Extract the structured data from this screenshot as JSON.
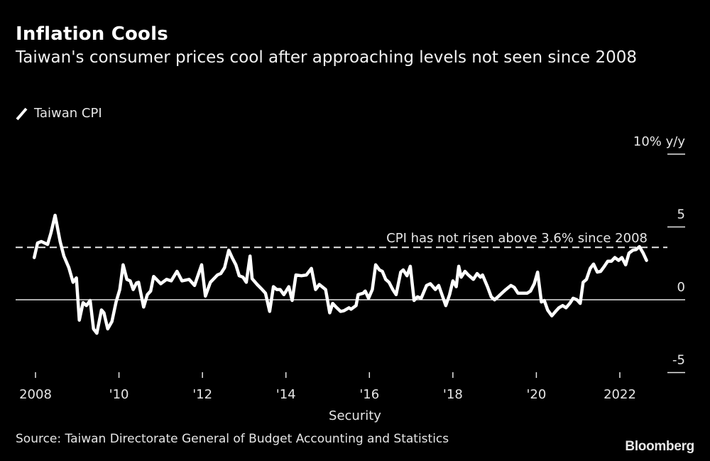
{
  "header": {
    "title": "Inflation Cools",
    "subtitle": "Taiwan's consumer prices cool after approaching levels not seen since 2008"
  },
  "legend": {
    "label": "Taiwan CPI"
  },
  "footer": {
    "source": "Source: Taiwan Directorate General of Budget Accounting and Statistics",
    "brand": "Bloomberg"
  },
  "chart_data": {
    "type": "line",
    "title": "Inflation Cools",
    "subtitle": "Taiwan's consumer prices cool after approaching levels not seen since 2008",
    "xlabel": "Security",
    "ylabel": "10% y/y",
    "ylim": [
      -5,
      10
    ],
    "xlim": [
      2008,
      2022.75
    ],
    "yticks": [
      {
        "value": 10,
        "label": "10% y/y"
      },
      {
        "value": 5,
        "label": "5"
      },
      {
        "value": 0,
        "label": "0"
      },
      {
        "value": -5,
        "label": "-5"
      }
    ],
    "xticks": [
      {
        "value": 2008,
        "label": "2008"
      },
      {
        "value": 2010,
        "label": "'10"
      },
      {
        "value": 2012,
        "label": "'12"
      },
      {
        "value": 2014,
        "label": "'14"
      },
      {
        "value": 2016,
        "label": "'16"
      },
      {
        "value": 2018,
        "label": "'18"
      },
      {
        "value": 2020,
        "label": "'20"
      },
      {
        "value": 2022,
        "label": "2022"
      }
    ],
    "legend_position": "top-left",
    "reference_line": {
      "value": 3.6,
      "label": "CPI has not risen above 3.6% since 2008",
      "style": "dashed"
    },
    "color": "#ffffff",
    "series": [
      {
        "name": "Taiwan CPI",
        "points": [
          [
            2007.97,
            2.9
          ],
          [
            2008.05,
            3.9
          ],
          [
            2008.14,
            4.0
          ],
          [
            2008.29,
            3.8
          ],
          [
            2008.37,
            4.6
          ],
          [
            2008.47,
            5.8
          ],
          [
            2008.59,
            4.0
          ],
          [
            2008.68,
            3.0
          ],
          [
            2008.8,
            2.2
          ],
          [
            2008.9,
            1.2
          ],
          [
            2008.98,
            1.5
          ],
          [
            2009.05,
            -1.4
          ],
          [
            2009.14,
            -0.2
          ],
          [
            2009.22,
            -0.4
          ],
          [
            2009.31,
            -0.05
          ],
          [
            2009.39,
            -2.0
          ],
          [
            2009.47,
            -2.3
          ],
          [
            2009.58,
            -0.7
          ],
          [
            2009.64,
            -0.9
          ],
          [
            2009.73,
            -2.0
          ],
          [
            2009.83,
            -1.5
          ],
          [
            2009.93,
            -0.15
          ],
          [
            2010.02,
            0.7
          ],
          [
            2010.1,
            2.4
          ],
          [
            2010.19,
            1.4
          ],
          [
            2010.27,
            1.3
          ],
          [
            2010.34,
            0.7
          ],
          [
            2010.42,
            1.15
          ],
          [
            2010.47,
            1.2
          ],
          [
            2010.59,
            -0.5
          ],
          [
            2010.68,
            0.35
          ],
          [
            2010.76,
            0.6
          ],
          [
            2010.83,
            1.6
          ],
          [
            2011.0,
            1.1
          ],
          [
            2011.14,
            1.4
          ],
          [
            2011.25,
            1.3
          ],
          [
            2011.39,
            1.95
          ],
          [
            2011.51,
            1.3
          ],
          [
            2011.68,
            1.4
          ],
          [
            2011.81,
            0.98
          ],
          [
            2011.98,
            2.4
          ],
          [
            2012.07,
            0.25
          ],
          [
            2012.19,
            1.2
          ],
          [
            2012.36,
            1.7
          ],
          [
            2012.44,
            1.8
          ],
          [
            2012.53,
            2.2
          ],
          [
            2012.63,
            3.4
          ],
          [
            2012.71,
            2.9
          ],
          [
            2012.8,
            2.4
          ],
          [
            2012.88,
            1.65
          ],
          [
            2012.97,
            1.55
          ],
          [
            2013.05,
            1.2
          ],
          [
            2013.14,
            3.0
          ],
          [
            2013.19,
            1.45
          ],
          [
            2013.31,
            1.05
          ],
          [
            2013.43,
            0.7
          ],
          [
            2013.51,
            0.45
          ],
          [
            2013.61,
            -0.8
          ],
          [
            2013.7,
            0.9
          ],
          [
            2013.78,
            0.7
          ],
          [
            2013.86,
            0.7
          ],
          [
            2013.95,
            0.35
          ],
          [
            2014.07,
            0.9
          ],
          [
            2014.15,
            -0.05
          ],
          [
            2014.24,
            1.7
          ],
          [
            2014.37,
            1.65
          ],
          [
            2014.49,
            1.7
          ],
          [
            2014.61,
            2.15
          ],
          [
            2014.71,
            0.7
          ],
          [
            2014.8,
            1.05
          ],
          [
            2014.95,
            0.7
          ],
          [
            2015.05,
            -0.9
          ],
          [
            2015.12,
            -0.25
          ],
          [
            2015.2,
            -0.5
          ],
          [
            2015.31,
            -0.8
          ],
          [
            2015.39,
            -0.75
          ],
          [
            2015.51,
            -0.55
          ],
          [
            2015.56,
            -0.65
          ],
          [
            2015.68,
            -0.4
          ],
          [
            2015.73,
            0.35
          ],
          [
            2015.85,
            0.45
          ],
          [
            2015.9,
            0.6
          ],
          [
            2015.98,
            0.1
          ],
          [
            2016.07,
            0.7
          ],
          [
            2016.15,
            2.4
          ],
          [
            2016.24,
            2.05
          ],
          [
            2016.31,
            1.95
          ],
          [
            2016.39,
            1.4
          ],
          [
            2016.47,
            1.2
          ],
          [
            2016.56,
            0.7
          ],
          [
            2016.64,
            0.35
          ],
          [
            2016.75,
            1.9
          ],
          [
            2016.81,
            2.05
          ],
          [
            2016.9,
            1.65
          ],
          [
            2016.98,
            2.3
          ],
          [
            2017.07,
            -0.05
          ],
          [
            2017.15,
            0.2
          ],
          [
            2017.24,
            0.1
          ],
          [
            2017.37,
            0.98
          ],
          [
            2017.46,
            1.1
          ],
          [
            2017.58,
            0.7
          ],
          [
            2017.66,
            0.98
          ],
          [
            2017.75,
            0.25
          ],
          [
            2017.83,
            -0.4
          ],
          [
            2017.92,
            0.35
          ],
          [
            2018.0,
            1.3
          ],
          [
            2018.08,
            0.9
          ],
          [
            2018.14,
            2.3
          ],
          [
            2018.2,
            1.55
          ],
          [
            2018.29,
            1.95
          ],
          [
            2018.37,
            1.7
          ],
          [
            2018.49,
            1.4
          ],
          [
            2018.58,
            1.8
          ],
          [
            2018.66,
            1.55
          ],
          [
            2018.71,
            1.7
          ],
          [
            2018.83,
            0.9
          ],
          [
            2018.92,
            0.2
          ],
          [
            2019.0,
            0.0
          ],
          [
            2019.08,
            0.2
          ],
          [
            2019.19,
            0.5
          ],
          [
            2019.27,
            0.7
          ],
          [
            2019.39,
            0.98
          ],
          [
            2019.47,
            0.85
          ],
          [
            2019.56,
            0.45
          ],
          [
            2019.78,
            0.45
          ],
          [
            2019.86,
            0.6
          ],
          [
            2019.95,
            1.1
          ],
          [
            2020.03,
            1.9
          ],
          [
            2020.12,
            -0.15
          ],
          [
            2020.19,
            -0.05
          ],
          [
            2020.27,
            -0.7
          ],
          [
            2020.37,
            -1.1
          ],
          [
            2020.46,
            -0.8
          ],
          [
            2020.54,
            -0.55
          ],
          [
            2020.63,
            -0.4
          ],
          [
            2020.71,
            -0.55
          ],
          [
            2020.8,
            -0.25
          ],
          [
            2020.88,
            0.1
          ],
          [
            2020.97,
            0.0
          ],
          [
            2021.05,
            -0.25
          ],
          [
            2021.12,
            1.2
          ],
          [
            2021.2,
            1.4
          ],
          [
            2021.29,
            2.15
          ],
          [
            2021.37,
            2.45
          ],
          [
            2021.46,
            1.9
          ],
          [
            2021.54,
            1.95
          ],
          [
            2021.63,
            2.3
          ],
          [
            2021.71,
            2.65
          ],
          [
            2021.8,
            2.65
          ],
          [
            2021.88,
            2.9
          ],
          [
            2021.97,
            2.7
          ],
          [
            2022.05,
            2.9
          ],
          [
            2022.14,
            2.4
          ],
          [
            2022.22,
            3.2
          ],
          [
            2022.31,
            3.4
          ],
          [
            2022.39,
            3.45
          ],
          [
            2022.47,
            3.65
          ],
          [
            2022.56,
            3.2
          ],
          [
            2022.64,
            2.7
          ]
        ]
      }
    ]
  }
}
